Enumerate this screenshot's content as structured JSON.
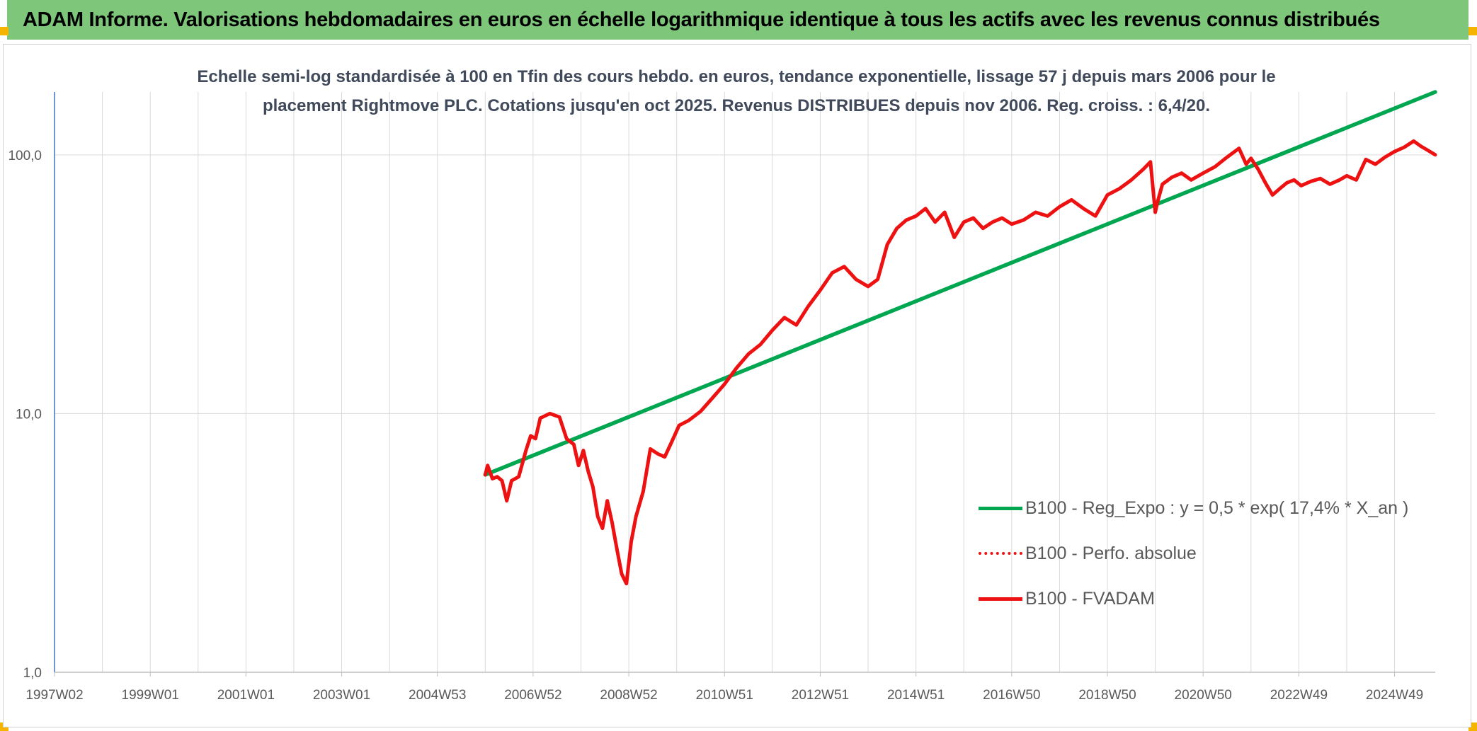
{
  "header": {
    "title": "ADAM Informe. Valorisations hebdomadaires en euros en échelle logarithmique identique à tous les actifs avec les revenus connus distribués"
  },
  "colors": {
    "header_bg": "#7dc67a",
    "corner_accent": "#f4b400",
    "trend_line": "#00a650",
    "price_line": "#ee1111",
    "grid": "#d9d9d9",
    "y_axis": "#4472c4"
  },
  "chart_data": {
    "type": "line",
    "title": "Echelle semi-log standardisée à 100 en Tfin des cours hebdo. en euros, tendance exponentielle, lissage 57 j depuis mars 2006 pour le placement Rightmove PLC. Cotations jusqu'en oct 2025. Revenus DISTRIBUES depuis nov 2006. Reg. croiss. : 6,4/20.",
    "y_scale": "log",
    "ylim": [
      1,
      175
    ],
    "y_ticks": [
      1,
      10,
      100
    ],
    "y_tick_labels": [
      "1,0",
      "10,0",
      "100,0"
    ],
    "xlim": [
      1997.0,
      2025.85
    ],
    "x_ticks": [
      1997.0,
      1999.0,
      2001.0,
      2003.0,
      2005.0,
      2007.0,
      2009.0,
      2011.0,
      2013.0,
      2015.0,
      2017.0,
      2019.0,
      2021.0,
      2023.0,
      2025.0
    ],
    "x_tick_labels": [
      "1997W02",
      "1999W01",
      "2001W01",
      "2003W01",
      "2004W53",
      "2006W52",
      "2008W52",
      "2010W51",
      "2012W51",
      "2014W51",
      "2016W50",
      "2018W50",
      "2020W50",
      "2022W49",
      "2024W49"
    ],
    "grid": "vertical and horizontal",
    "legend_position": "bottom-right",
    "series": [
      {
        "name": "B100 - Reg_Expo : y = 0,5 * exp( 17,4% * X_an )",
        "style": "solid-green",
        "x": [
          2006.0,
          2025.85
        ],
        "y": [
          5.8,
          175
        ]
      },
      {
        "name": "B100 - Perfo. absolue",
        "style": "dotted-red",
        "x": [],
        "y": []
      },
      {
        "name": "B100 - FVADAM",
        "style": "solid-red",
        "x": [
          2006.0,
          2006.05,
          2006.15,
          2006.25,
          2006.35,
          2006.45,
          2006.55,
          2006.7,
          2006.85,
          2006.95,
          2007.05,
          2007.15,
          2007.35,
          2007.55,
          2007.7,
          2007.85,
          2007.95,
          2008.05,
          2008.15,
          2008.25,
          2008.35,
          2008.45,
          2008.55,
          2008.65,
          2008.75,
          2008.85,
          2008.95,
          2009.05,
          2009.15,
          2009.3,
          2009.45,
          2009.6,
          2009.75,
          2009.9,
          2010.05,
          2010.25,
          2010.5,
          2010.75,
          2011.0,
          2011.25,
          2011.5,
          2011.75,
          2012.0,
          2012.25,
          2012.5,
          2012.75,
          2013.0,
          2013.25,
          2013.5,
          2013.75,
          2014.0,
          2014.2,
          2014.4,
          2014.6,
          2014.8,
          2015.0,
          2015.2,
          2015.4,
          2015.6,
          2015.8,
          2016.0,
          2016.2,
          2016.4,
          2016.6,
          2016.8,
          2017.0,
          2017.25,
          2017.5,
          2017.75,
          2018.0,
          2018.25,
          2018.5,
          2018.75,
          2019.0,
          2019.25,
          2019.5,
          2019.75,
          2019.9,
          2020.0,
          2020.05,
          2020.15,
          2020.35,
          2020.55,
          2020.75,
          2021.0,
          2021.25,
          2021.5,
          2021.75,
          2021.9,
          2022.0,
          2022.15,
          2022.3,
          2022.45,
          2022.6,
          2022.75,
          2022.9,
          2023.05,
          2023.25,
          2023.45,
          2023.65,
          2023.85,
          2024.0,
          2024.2,
          2024.4,
          2024.6,
          2024.8,
          2025.0,
          2025.2,
          2025.4,
          2025.55,
          2025.7,
          2025.85
        ],
        "y": [
          5.8,
          6.3,
          5.6,
          5.7,
          5.5,
          4.6,
          5.5,
          5.7,
          7.2,
          8.2,
          8.0,
          9.6,
          10.0,
          9.7,
          8.0,
          7.6,
          6.3,
          7.2,
          6.0,
          5.2,
          4.0,
          3.6,
          4.6,
          3.8,
          3.0,
          2.4,
          2.2,
          3.2,
          4.0,
          5.0,
          7.3,
          7.0,
          6.8,
          7.8,
          9.0,
          9.4,
          10.2,
          11.5,
          13.0,
          15.0,
          17.0,
          18.5,
          21.0,
          23.5,
          22.0,
          26.0,
          30.0,
          35.0,
          37.0,
          33.0,
          31.0,
          33.0,
          45.0,
          52.0,
          56.0,
          58.0,
          62.0,
          55.0,
          60.0,
          48.0,
          55.0,
          57.0,
          52.0,
          55.0,
          57.0,
          54.0,
          56.0,
          60.0,
          58.0,
          63.0,
          67.0,
          62.0,
          58.0,
          70.0,
          74.0,
          80.0,
          88.0,
          94.0,
          60.0,
          66.0,
          77.0,
          82.0,
          85.0,
          80.0,
          85.0,
          90.0,
          98.0,
          106.0,
          92.0,
          97.0,
          88.0,
          78.0,
          70.0,
          74.0,
          78.0,
          80.0,
          76.0,
          79.0,
          81.0,
          77.0,
          80.0,
          83.0,
          80.0,
          96.0,
          92.0,
          98.0,
          103.0,
          107.0,
          113.0,
          108.0,
          104.0,
          100.0
        ]
      }
    ]
  }
}
